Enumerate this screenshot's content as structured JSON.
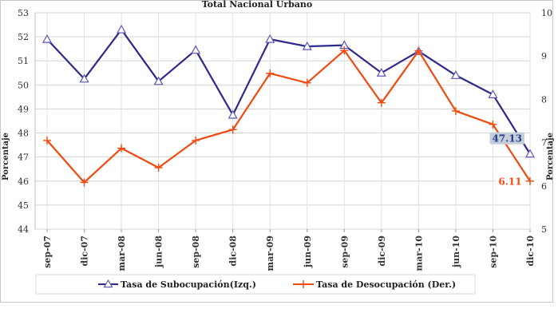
{
  "chart_data": {
    "type": "line",
    "title": "Total Nacional Urbano",
    "ylabel_left": "Porcentaje",
    "ylabel_right": "Porcentaje",
    "categories": [
      "sep-07",
      "dic-07",
      "mar-08",
      "jun-08",
      "sep-08",
      "dic-08",
      "mar-09",
      "jun-09",
      "sep-09",
      "dic-09",
      "mar-10",
      "jun-10",
      "sep-10",
      "dic-10"
    ],
    "ylim_left": [
      44,
      53
    ],
    "yticks_left": [
      44,
      45,
      46,
      47,
      48,
      49,
      50,
      51,
      52,
      53
    ],
    "ylim_right": [
      5,
      10
    ],
    "yticks_right": [
      5,
      6,
      7,
      8,
      9,
      10
    ],
    "grid": true,
    "legend_position": "bottom",
    "series": [
      {
        "name": "Tasa de Subocupación(Izq.)",
        "axis": "left",
        "color": "#2e2a8c",
        "marker": "triangle",
        "values": [
          51.9,
          50.25,
          52.3,
          50.15,
          51.45,
          48.75,
          51.9,
          51.6,
          51.65,
          50.5,
          51.4,
          50.4,
          49.6,
          47.13
        ]
      },
      {
        "name": "Tasa de Desocupación (Der.)",
        "axis": "right",
        "color": "#f04a10",
        "marker": "plus",
        "values": [
          7.05,
          6.08,
          6.87,
          6.42,
          7.05,
          7.3,
          8.6,
          8.38,
          9.13,
          7.92,
          9.12,
          7.73,
          7.42,
          6.11
        ]
      }
    ],
    "annotations": [
      {
        "series": 0,
        "index": 13,
        "text": "47.13",
        "color": "#1f3d8c",
        "bg": "#c5cdd8"
      },
      {
        "series": 1,
        "index": 13,
        "text": "6.11",
        "color": "#f04a10",
        "bg": "#ffffff"
      }
    ]
  }
}
